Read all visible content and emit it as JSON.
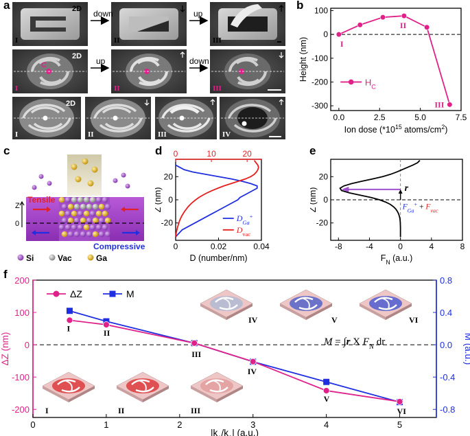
{
  "panels": {
    "a": "a",
    "b": "b",
    "c": "c",
    "d": "d",
    "e": "e",
    "f": "f"
  },
  "panel_a": {
    "row1": {
      "tag_2d": "2D",
      "arrow1": "down",
      "arrow2": "up",
      "labels": [
        "I",
        "II",
        "III"
      ]
    },
    "row2": {
      "tag_2d": "2D",
      "point_label": "C",
      "arrow1": "up",
      "arrow2": "down",
      "labels": [
        "I",
        "II",
        "III"
      ]
    },
    "row3": {
      "tag_2d": "2D",
      "labels": [
        "I",
        "II",
        "III",
        "IV"
      ]
    }
  },
  "panel_c": {
    "z_label": "Z",
    "zero_label": "0",
    "tensile": "Tensile",
    "compressive": "Compressive",
    "legend": {
      "si": "Si",
      "vac": "Vac",
      "ga": "Ga"
    },
    "colors": {
      "si": "#9b4fd1",
      "vac": "#a8a8a8",
      "ga": "#e8b820",
      "tensile": "#e0202a",
      "compressive": "#2030e0"
    }
  },
  "chart_data": [
    {
      "id": "b",
      "type": "line",
      "xlabel": "Ion dose (*10",
      "xlabel_sup": "15",
      "xlabel_mid": " atoms/cm",
      "xlabel_sup2": "2",
      "xlabel_end": ")",
      "ylabel": "Height (nm)",
      "xlim": [
        -0.5,
        7.5
      ],
      "ylim": [
        -320,
        110
      ],
      "xticks": [
        0.0,
        2.5,
        5.0,
        7.5
      ],
      "xtick_labels": [
        "0.0",
        "2.5",
        "5.0",
        "7.5"
      ],
      "yticks": [
        100,
        0,
        -100,
        -200,
        -300
      ],
      "ytick_labels": [
        "100",
        "0",
        "-100",
        "-200",
        "-300"
      ],
      "series": [
        {
          "name": "H",
          "name_sub": "C",
          "color": "#e0218a",
          "x": [
            0.0,
            1.3,
            2.7,
            4.0,
            5.4,
            6.8
          ],
          "y": [
            0,
            40,
            72,
            78,
            30,
            -295
          ]
        }
      ],
      "annotations": [
        {
          "text": "I",
          "x": 0.0,
          "y": 0
        },
        {
          "text": "II",
          "x": 4.0,
          "y": 78
        },
        {
          "text": "III",
          "x": 6.8,
          "y": -295
        }
      ]
    },
    {
      "id": "d",
      "type": "line",
      "xlabel": "D (number/nm)",
      "ylabel": "Z (nm)",
      "bottom_xlim": [
        0,
        0.04
      ],
      "bottom_xticks": [
        0,
        0.02,
        0.04
      ],
      "bottom_xtick_labels": [
        "0",
        "0.02",
        "0.04"
      ],
      "top_xlim": [
        0,
        24
      ],
      "top_xticks": [
        0,
        10,
        20
      ],
      "top_xtick_labels": [
        "0",
        "10",
        "20"
      ],
      "ylim": [
        -35,
        35
      ],
      "yticks": [
        20,
        0,
        -20
      ],
      "ytick_labels": [
        "20",
        "0",
        "-20"
      ],
      "series": [
        {
          "name": "D",
          "name_sub": "Ga",
          "name_sup": "+",
          "color": "#1e2ee0",
          "axis": "bottom",
          "z": [
            30,
            28,
            26,
            24,
            22,
            20,
            18,
            16,
            14,
            12,
            10,
            8,
            6,
            4,
            2,
            0,
            -2,
            -4,
            -6,
            -8,
            -10,
            -12,
            -14,
            -16,
            -18,
            -20,
            -22,
            -24,
            -26,
            -28,
            -30,
            -32
          ],
          "d": [
            0.0,
            0.002,
            0.004,
            0.008,
            0.014,
            0.02,
            0.026,
            0.031,
            0.035,
            0.038,
            0.038,
            0.036,
            0.034,
            0.032,
            0.03,
            0.029,
            0.027,
            0.025,
            0.023,
            0.021,
            0.019,
            0.017,
            0.015,
            0.013,
            0.011,
            0.009,
            0.007,
            0.005,
            0.003,
            0.002,
            0.001,
            0.0
          ]
        },
        {
          "name": "D",
          "name_sub": "vac",
          "color": "#e81e1e",
          "axis": "top",
          "z": [
            34,
            32,
            30,
            28,
            26,
            24,
            22,
            20,
            18,
            16,
            14,
            12,
            10,
            8,
            6,
            4,
            2,
            0,
            -2,
            -4,
            -6,
            -8,
            -10,
            -12,
            -14,
            -16,
            -18,
            -20,
            -22,
            -24,
            -26,
            -28,
            -30,
            -32
          ],
          "d": [
            22.0,
            22.5,
            23.0,
            23.2,
            23.0,
            22.6,
            22.0,
            21.0,
            19.5,
            17.5,
            15.5,
            13.5,
            11.8,
            10.2,
            8.8,
            7.6,
            6.5,
            5.6,
            4.8,
            4.1,
            3.5,
            3.0,
            2.5,
            2.1,
            1.7,
            1.4,
            1.1,
            0.9,
            0.7,
            0.5,
            0.35,
            0.2,
            0.1,
            0.0
          ]
        }
      ]
    },
    {
      "id": "e",
      "type": "line",
      "xlabel": "F",
      "xlabel_sub": "N",
      "xlabel_end": " (a.u.)",
      "ylabel": "Z (nm)",
      "xlim": [
        -9,
        8
      ],
      "xticks": [
        -8,
        -4,
        0,
        4,
        8
      ],
      "xtick_labels": [
        "-8",
        "-4",
        "0",
        "4",
        "8"
      ],
      "ylim": [
        -35,
        35
      ],
      "yticks": [
        20,
        0,
        -20
      ],
      "ytick_labels": [
        "20",
        "0",
        "-20"
      ],
      "series": [
        {
          "name": "F_N",
          "color": "#000000",
          "z": [
            34,
            32,
            30,
            28,
            26,
            24,
            22,
            20,
            18,
            16,
            14,
            12,
            10,
            8,
            6,
            4,
            2,
            0,
            -2,
            -4,
            -6,
            -8,
            -10,
            -12,
            -14,
            -16,
            -18,
            -20,
            -22,
            -24,
            -26,
            -28,
            -30,
            -32
          ],
          "f": [
            2.5,
            2.2,
            1.6,
            0.9,
            0.2,
            -0.5,
            -1.3,
            -2.3,
            -3.6,
            -5.0,
            -6.3,
            -7.3,
            -7.8,
            -7.6,
            -6.6,
            -5.2,
            -3.8,
            -2.7,
            -1.9,
            -1.3,
            -0.9,
            -0.6,
            -0.4,
            -0.25,
            -0.15,
            -0.08,
            -0.04,
            -0.02,
            -0.01,
            0,
            0,
            0,
            0,
            0
          ]
        }
      ],
      "annotation_r": "r",
      "annotation_force": {
        "f1": "F",
        "f1_sub": "Ga",
        "f1_sup": "+",
        "plus": " + ",
        "f2": "F",
        "f2_sub": "vac"
      },
      "colors": {
        "arrow": "#a050d0",
        "f1": "#2030e0",
        "f2": "#e02020"
      }
    },
    {
      "id": "f",
      "type": "line",
      "xlabel": "|k",
      "xlabel_sub1": "1",
      "xlabel_mid": "/k",
      "xlabel_sub2": "2",
      "xlabel_end": "| (a.u.)",
      "ylabel_left": "ΔZ (nm)",
      "ylabel_right": "M (a.u.)",
      "xlim": [
        0,
        5.5
      ],
      "xticks": [
        0,
        1,
        2,
        3,
        4,
        5
      ],
      "xtick_labels": [
        "0",
        "1",
        "2",
        "3",
        "4",
        "5"
      ],
      "left_ylim": [
        -225,
        200
      ],
      "left_yticks": [
        200,
        100,
        0,
        -100,
        -200
      ],
      "left_ytick_labels": [
        "200",
        "100",
        "0",
        "-100",
        "-200"
      ],
      "right_ylim": [
        -0.9,
        0.8
      ],
      "right_yticks": [
        0.8,
        0.4,
        0.0,
        -0.4,
        -0.8
      ],
      "right_ytick_labels": [
        "0.8",
        "0.4",
        "0.0",
        "-0.4",
        "-0.8"
      ],
      "series": [
        {
          "name": "ΔZ",
          "color": "#e0218a",
          "axis": "left",
          "marker": "circle",
          "x": [
            0.5,
            1.0,
            2.2,
            3.0,
            4.0,
            5.0
          ],
          "y": [
            76,
            62,
            5,
            -52,
            -142,
            -176
          ]
        },
        {
          "name": "M",
          "color": "#1e2ee0",
          "axis": "right",
          "marker": "square",
          "x": [
            0.5,
            1.0,
            2.2,
            3.0,
            4.0,
            5.0
          ],
          "y": [
            0.42,
            0.29,
            0.02,
            -0.21,
            -0.46,
            -0.71
          ]
        }
      ],
      "point_labels": [
        "I",
        "II",
        "III",
        "IV",
        "V",
        "VI"
      ],
      "equation": {
        "m": "M",
        "eq": " = ",
        "integral": "∫",
        "r": "r",
        "x": " X ",
        "f": "F",
        "f_sub": "N",
        "dr": " dr"
      },
      "inset_labels_top": [
        "IV",
        "V",
        "VI"
      ],
      "inset_labels_bottom": [
        "I",
        "II",
        "III"
      ]
    }
  ]
}
